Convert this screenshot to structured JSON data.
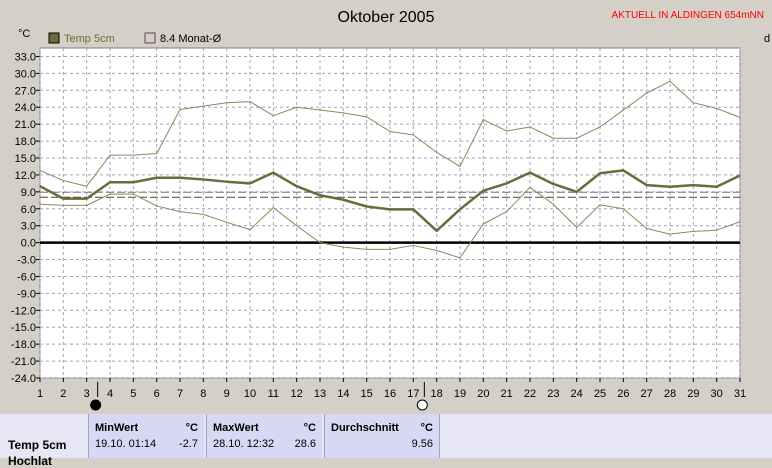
{
  "title": "Oktober 2005",
  "station_banner": "AKTUELL IN ALDINGEN 654mNN",
  "unit_label": "°C",
  "right_edge_label": "d",
  "legend": [
    {
      "label": "Temp 5cm",
      "color": "#6b6b3c"
    },
    {
      "label": "8.4 Monat-Ø",
      "color": "#6b3c6b"
    }
  ],
  "colors": {
    "title": "#000000",
    "banner": "#ff0000",
    "plot_bg": "#ffffff",
    "grid": "#a0a0c0",
    "mean_line": "#6b6b3c",
    "minmax_line": "#8a8a5a",
    "zero_line": "#000000"
  },
  "chart_data": {
    "type": "line",
    "title": "Oktober 2005",
    "ylabel": "°C",
    "x": [
      1,
      2,
      3,
      4,
      5,
      6,
      7,
      8,
      9,
      10,
      11,
      12,
      13,
      14,
      15,
      16,
      17,
      18,
      19,
      20,
      21,
      22,
      23,
      24,
      25,
      26,
      27,
      28,
      29,
      30,
      31
    ],
    "y_ticks": [
      "33.0",
      "30.0",
      "27.0",
      "24.0",
      "21.0",
      "18.0",
      "15.0",
      "12.0",
      "9.0",
      "6.0",
      "3.0",
      "0.0",
      "-3.0",
      "-6.0",
      "-9.0",
      "-12.0",
      "-15.0",
      "-18.0",
      "-21.0",
      "-24.0"
    ],
    "ylim": [
      -24,
      34.5
    ],
    "grid": true,
    "series": [
      {
        "name": "Temp 5cm",
        "values": [
          10.0,
          7.8,
          7.8,
          10.7,
          10.7,
          11.5,
          11.5,
          11.2,
          10.8,
          10.5,
          12.4,
          10.0,
          8.4,
          7.6,
          6.4,
          5.9,
          5.9,
          2.1,
          5.9,
          9.2,
          10.5,
          12.4,
          10.4,
          9.0,
          12.3,
          12.8,
          10.2,
          9.9,
          10.2,
          9.9,
          11.9
        ]
      },
      {
        "values": [
          12.8,
          11.0,
          10.0,
          15.5,
          15.5,
          15.8,
          23.6,
          24.2,
          24.8,
          25.0,
          22.5,
          24.0,
          23.5,
          23.0,
          22.3,
          19.7,
          19.1,
          16.0,
          13.5,
          21.8,
          19.8,
          20.5,
          18.5,
          18.5,
          20.5,
          23.5,
          26.5,
          28.6,
          24.8,
          23.8,
          22.2
        ]
      },
      {
        "values": [
          6.8,
          6.6,
          6.6,
          8.6,
          8.6,
          6.5,
          5.5,
          5.0,
          3.6,
          2.3,
          6.2,
          3.0,
          0.0,
          -0.8,
          -1.2,
          -1.2,
          -0.5,
          -1.4,
          -2.7,
          3.3,
          5.5,
          9.8,
          6.8,
          2.7,
          6.7,
          6.0,
          2.5,
          1.5,
          2.0,
          2.2,
          3.7
        ]
      }
    ],
    "reference_line": {
      "name": "8.4 Monat-Ø",
      "value": 8.4
    },
    "markers": [
      {
        "x_label": "3",
        "symbol": "new moon"
      },
      {
        "x_label": "17",
        "symbol": "full moon"
      }
    ]
  },
  "stats": {
    "series_label": "Temp 5cm",
    "cut_label": "Hochlat",
    "min": {
      "title": "MinWert",
      "unit": "°C",
      "time": "19.10.  01:14",
      "value": "-2.7"
    },
    "max": {
      "title": "MaxWert",
      "unit": "°C",
      "time": "28.10.  12:32",
      "value": "28.6"
    },
    "avg": {
      "title": "Durchschnitt",
      "unit": "°C",
      "value": "9.56"
    }
  }
}
